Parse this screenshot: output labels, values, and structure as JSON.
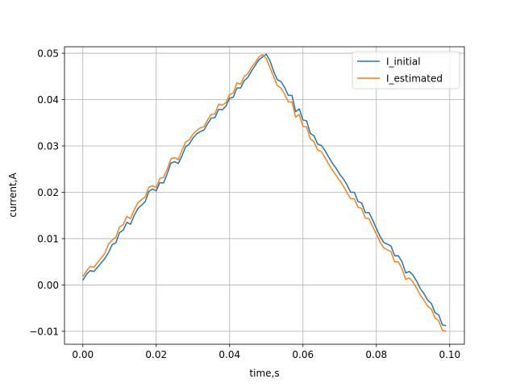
{
  "chart_data": {
    "type": "line",
    "title": "",
    "xlabel": "time,s",
    "ylabel": "current,A",
    "xlim": [
      -0.005,
      0.104
    ],
    "ylim": [
      -0.0128,
      0.0514
    ],
    "grid": true,
    "legend_position": "top-right",
    "x_ticks": [
      0.0,
      0.02,
      0.04,
      0.06,
      0.08,
      0.1
    ],
    "x_tick_labels": [
      "0.00",
      "0.02",
      "0.04",
      "0.06",
      "0.08",
      "0.10"
    ],
    "y_ticks": [
      -0.01,
      0.0,
      0.01,
      0.02,
      0.03,
      0.04,
      0.05
    ],
    "y_tick_labels": [
      "−0.01",
      "0.00",
      "0.01",
      "0.02",
      "0.03",
      "0.04",
      "0.05"
    ],
    "series": [
      {
        "name": "I_initial",
        "color": "#1f77b4",
        "x": [
          0.0,
          0.001,
          0.002,
          0.003,
          0.004,
          0.005,
          0.006,
          0.007,
          0.008,
          0.009,
          0.01,
          0.011,
          0.012,
          0.013,
          0.014,
          0.015,
          0.016,
          0.017,
          0.018,
          0.019,
          0.02,
          0.021,
          0.022,
          0.023,
          0.024,
          0.025,
          0.026,
          0.027,
          0.028,
          0.029,
          0.03,
          0.031,
          0.032,
          0.033,
          0.034,
          0.035,
          0.036,
          0.037,
          0.038,
          0.039,
          0.04,
          0.041,
          0.042,
          0.043,
          0.044,
          0.045,
          0.046,
          0.047,
          0.048,
          0.049,
          0.05,
          0.051,
          0.052,
          0.053,
          0.054,
          0.055,
          0.056,
          0.057,
          0.058,
          0.059,
          0.06,
          0.061,
          0.062,
          0.063,
          0.064,
          0.065,
          0.066,
          0.067,
          0.068,
          0.069,
          0.07,
          0.071,
          0.072,
          0.073,
          0.074,
          0.075,
          0.076,
          0.077,
          0.078,
          0.079,
          0.08,
          0.081,
          0.082,
          0.083,
          0.084,
          0.085,
          0.086,
          0.087,
          0.088,
          0.089,
          0.09,
          0.091,
          0.092,
          0.093,
          0.094,
          0.095,
          0.096,
          0.097,
          0.098,
          0.099
        ],
        "y": [
          0.001,
          0.0023,
          0.0031,
          0.0029,
          0.0038,
          0.0048,
          0.0057,
          0.007,
          0.0087,
          0.0091,
          0.0113,
          0.0118,
          0.0135,
          0.0131,
          0.015,
          0.0165,
          0.0172,
          0.018,
          0.0202,
          0.0207,
          0.0203,
          0.0221,
          0.022,
          0.024,
          0.0263,
          0.0266,
          0.0262,
          0.0278,
          0.0298,
          0.0304,
          0.0317,
          0.0326,
          0.0331,
          0.0334,
          0.0348,
          0.036,
          0.0361,
          0.0379,
          0.0378,
          0.0386,
          0.0403,
          0.0405,
          0.0425,
          0.0425,
          0.0441,
          0.0448,
          0.0462,
          0.0474,
          0.0486,
          0.0492,
          0.0498,
          0.0484,
          0.0461,
          0.0443,
          0.0439,
          0.0426,
          0.0409,
          0.0409,
          0.0374,
          0.038,
          0.0356,
          0.0354,
          0.0327,
          0.0322,
          0.0304,
          0.0301,
          0.029,
          0.0276,
          0.0263,
          0.0252,
          0.0239,
          0.0229,
          0.0216,
          0.02,
          0.02,
          0.018,
          0.0177,
          0.0156,
          0.0156,
          0.014,
          0.0122,
          0.0105,
          0.0092,
          0.0088,
          0.0084,
          0.0063,
          0.0063,
          0.005,
          0.0026,
          0.0029,
          0.0021,
          0.0008,
          -0.0008,
          -0.0019,
          -0.0033,
          -0.004,
          -0.006,
          -0.0065,
          -0.0086,
          -0.0088
        ]
      },
      {
        "name": "I_estimated",
        "color": "#ff7f0e",
        "x": [
          0.0,
          0.001,
          0.002,
          0.003,
          0.004,
          0.005,
          0.006,
          0.007,
          0.008,
          0.009,
          0.01,
          0.011,
          0.012,
          0.013,
          0.014,
          0.015,
          0.016,
          0.017,
          0.018,
          0.019,
          0.02,
          0.021,
          0.022,
          0.023,
          0.024,
          0.025,
          0.026,
          0.027,
          0.028,
          0.029,
          0.03,
          0.031,
          0.032,
          0.033,
          0.034,
          0.035,
          0.036,
          0.037,
          0.038,
          0.039,
          0.04,
          0.041,
          0.042,
          0.043,
          0.044,
          0.045,
          0.046,
          0.047,
          0.048,
          0.049,
          0.05,
          0.051,
          0.052,
          0.053,
          0.054,
          0.055,
          0.056,
          0.057,
          0.058,
          0.059,
          0.06,
          0.061,
          0.062,
          0.063,
          0.064,
          0.065,
          0.066,
          0.067,
          0.068,
          0.069,
          0.07,
          0.071,
          0.072,
          0.073,
          0.074,
          0.075,
          0.076,
          0.077,
          0.078,
          0.079,
          0.08,
          0.081,
          0.082,
          0.083,
          0.084,
          0.085,
          0.086,
          0.087,
          0.088,
          0.089,
          0.09,
          0.091,
          0.092,
          0.093,
          0.094,
          0.095,
          0.096,
          0.097,
          0.098,
          0.099
        ],
        "y": [
          0.0018,
          0.003,
          0.004,
          0.0038,
          0.0048,
          0.0058,
          0.0068,
          0.0088,
          0.0097,
          0.0103,
          0.0125,
          0.013,
          0.0148,
          0.0143,
          0.0162,
          0.0177,
          0.0184,
          0.019,
          0.0211,
          0.0214,
          0.021,
          0.023,
          0.0232,
          0.025,
          0.0272,
          0.0275,
          0.027,
          0.029,
          0.0308,
          0.0313,
          0.0325,
          0.0333,
          0.0339,
          0.0341,
          0.0356,
          0.0368,
          0.0369,
          0.039,
          0.0388,
          0.0393,
          0.0411,
          0.0414,
          0.0436,
          0.0433,
          0.045,
          0.0456,
          0.047,
          0.048,
          0.0492,
          0.0497,
          0.0489,
          0.0469,
          0.045,
          0.043,
          0.0425,
          0.0412,
          0.0395,
          0.0395,
          0.0362,
          0.0368,
          0.0342,
          0.0341,
          0.0315,
          0.0309,
          0.0291,
          0.0288,
          0.0275,
          0.0261,
          0.0248,
          0.0237,
          0.0225,
          0.0214,
          0.0199,
          0.0186,
          0.0186,
          0.0168,
          0.0165,
          0.0144,
          0.0143,
          0.0126,
          0.011,
          0.0093,
          0.008,
          0.0076,
          0.0072,
          0.005,
          0.005,
          0.0035,
          0.0012,
          0.0015,
          0.0006,
          -0.0007,
          -0.0022,
          -0.0033,
          -0.0046,
          -0.0052,
          -0.0071,
          -0.0077,
          -0.0098,
          -0.01
        ]
      }
    ]
  }
}
